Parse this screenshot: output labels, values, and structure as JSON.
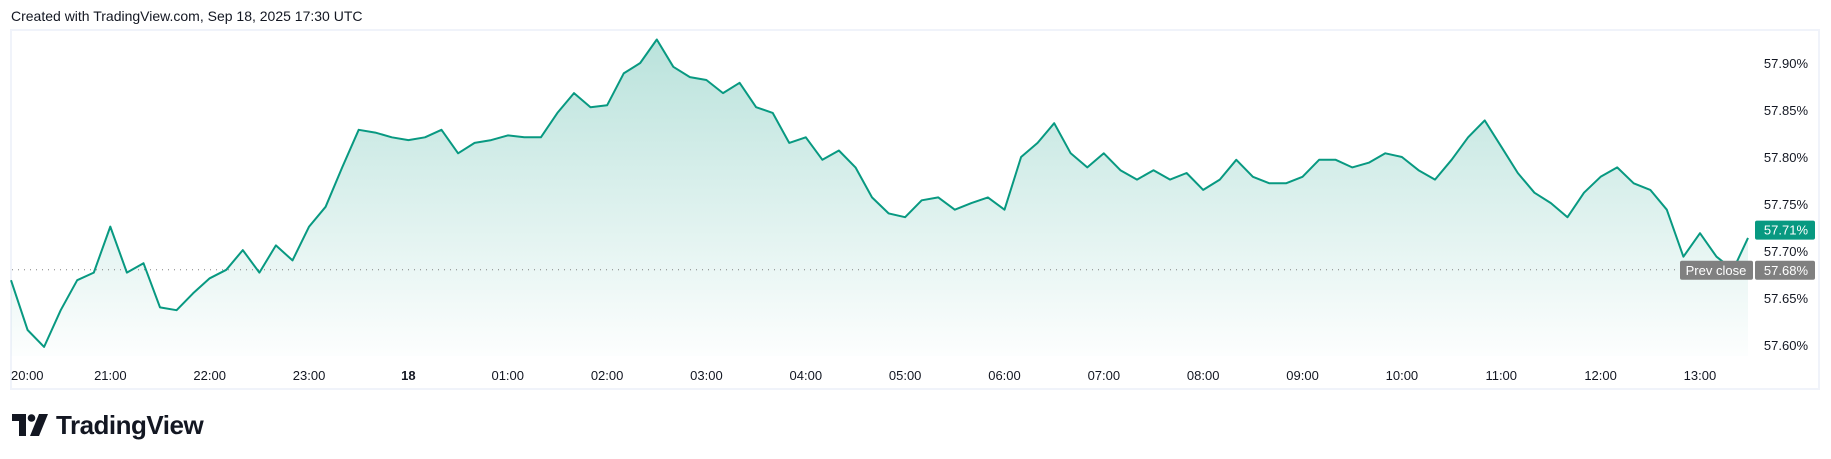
{
  "header": {
    "caption": "Created with TradingView.com, Sep 18, 2025 17:30 UTC"
  },
  "logo": {
    "text": "TradingView"
  },
  "colors": {
    "line": "#089981",
    "fill": "#089981",
    "last_price_bg": "#089981",
    "prev_close_bg": "#808080",
    "axis_text": "#131722",
    "prev_close_line": "#808080"
  },
  "chart_data": {
    "type": "area",
    "title": "",
    "xlabel": "",
    "ylabel": "",
    "ylim": [
      57.585,
      57.94
    ],
    "y_ticks": [
      "57.90%",
      "57.85%",
      "57.80%",
      "57.75%",
      "57.70%",
      "57.65%",
      "57.60%"
    ],
    "y_tick_values": [
      57.9,
      57.85,
      57.8,
      57.75,
      57.7,
      57.65,
      57.6
    ],
    "x_ticks": [
      {
        "label": "20:00",
        "time": "20:00"
      },
      {
        "label": "21:00",
        "time": "21:00"
      },
      {
        "label": "22:00",
        "time": "22:00"
      },
      {
        "label": "23:00",
        "time": "23:00"
      },
      {
        "label": "18",
        "time": "00:00",
        "bold": true
      },
      {
        "label": "01:00",
        "time": "01:00"
      },
      {
        "label": "02:00",
        "time": "02:00"
      },
      {
        "label": "03:00",
        "time": "03:00"
      },
      {
        "label": "04:00",
        "time": "04:00"
      },
      {
        "label": "05:00",
        "time": "05:00"
      },
      {
        "label": "06:00",
        "time": "06:00"
      },
      {
        "label": "07:00",
        "time": "07:00"
      },
      {
        "label": "08:00",
        "time": "08:00"
      },
      {
        "label": "09:00",
        "time": "09:00"
      },
      {
        "label": "10:00",
        "time": "10:00"
      },
      {
        "label": "11:00",
        "time": "11:00"
      },
      {
        "label": "12:00",
        "time": "12:00"
      },
      {
        "label": "13:00",
        "time": "13:00"
      }
    ],
    "x": [
      "20:00",
      "20:10",
      "20:20",
      "20:30",
      "20:40",
      "20:50",
      "21:00",
      "21:10",
      "21:20",
      "21:30",
      "21:40",
      "21:50",
      "22:00",
      "22:10",
      "22:20",
      "22:30",
      "22:40",
      "22:50",
      "23:00",
      "23:10",
      "23:20",
      "23:30",
      "23:40",
      "23:50",
      "00:00",
      "00:10",
      "00:20",
      "00:30",
      "00:40",
      "00:50",
      "01:00",
      "01:10",
      "01:20",
      "01:30",
      "01:40",
      "01:50",
      "02:00",
      "02:10",
      "02:20",
      "02:30",
      "02:40",
      "02:50",
      "03:00",
      "03:10",
      "03:20",
      "03:30",
      "03:40",
      "03:50",
      "04:00",
      "04:10",
      "04:20",
      "04:30",
      "04:40",
      "04:50",
      "05:00",
      "05:10",
      "05:20",
      "05:30",
      "05:40",
      "05:50",
      "06:00",
      "06:10",
      "06:20",
      "06:30",
      "06:40",
      "06:50",
      "07:00",
      "07:10",
      "07:20",
      "07:30",
      "07:40",
      "07:50",
      "08:00",
      "08:10",
      "08:20",
      "08:30",
      "08:40",
      "08:50",
      "09:00",
      "09:10",
      "09:20",
      "09:30",
      "09:40",
      "09:50",
      "10:00",
      "10:10",
      "10:20",
      "10:30",
      "10:40",
      "10:50",
      "11:00",
      "11:10",
      "11:20",
      "11:30",
      "11:40",
      "11:50",
      "12:00",
      "12:10",
      "12:20",
      "12:30",
      "12:40",
      "12:50",
      "13:00",
      "13:10",
      "13:20",
      "13:29"
    ],
    "values": [
      57.669,
      57.616,
      57.598,
      57.637,
      57.669,
      57.677,
      57.726,
      57.677,
      57.687,
      57.64,
      57.637,
      57.655,
      57.671,
      57.68,
      57.701,
      57.677,
      57.706,
      57.69,
      57.726,
      57.747,
      57.789,
      57.829,
      57.826,
      57.821,
      57.818,
      57.821,
      57.829,
      57.804,
      57.815,
      57.818,
      57.823,
      57.821,
      57.821,
      57.847,
      57.868,
      57.853,
      57.855,
      57.889,
      57.9,
      57.925,
      57.896,
      57.885,
      57.882,
      57.868,
      57.879,
      57.853,
      57.847,
      57.815,
      57.821,
      57.797,
      57.807,
      57.789,
      57.757,
      57.74,
      57.736,
      57.754,
      57.757,
      57.744,
      57.751,
      57.757,
      57.744,
      57.8,
      57.815,
      57.836,
      57.804,
      57.789,
      57.804,
      57.786,
      57.776,
      57.786,
      57.776,
      57.783,
      57.765,
      57.776,
      57.797,
      57.779,
      57.772,
      57.772,
      57.779,
      57.797,
      57.797,
      57.789,
      57.794,
      57.804,
      57.8,
      57.786,
      57.776,
      57.797,
      57.821,
      57.839,
      57.811,
      57.783,
      57.762,
      57.751,
      57.736,
      57.762,
      57.779,
      57.789,
      57.772,
      57.765,
      57.744,
      57.694,
      57.719,
      57.694,
      57.68,
      57.714
    ],
    "last_price": {
      "value": 57.71,
      "label": "57.71%"
    },
    "prev_close": {
      "value": 57.68,
      "label": "Prev close",
      "value_label": "57.68%"
    },
    "grid": false,
    "legend": "none"
  }
}
